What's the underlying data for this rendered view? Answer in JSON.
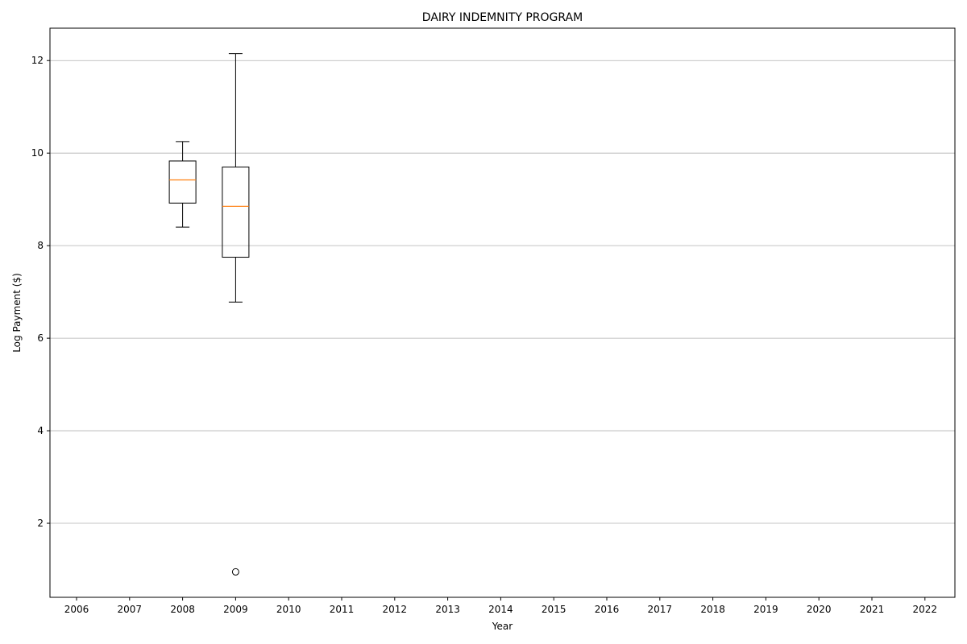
{
  "chart_data": {
    "type": "box",
    "title": "DAIRY INDEMNITY PROGRAM",
    "xlabel": "Year",
    "ylabel": "Log Payment ($)",
    "categories": [
      "2006",
      "2007",
      "2008",
      "2009",
      "2010",
      "2011",
      "2012",
      "2013",
      "2014",
      "2015",
      "2016",
      "2017",
      "2018",
      "2019",
      "2020",
      "2021",
      "2022"
    ],
    "y_ticks": [
      2,
      4,
      6,
      8,
      10,
      12
    ],
    "ylim": [
      0.4,
      12.7
    ],
    "grid": "horizontal",
    "colors": {
      "box": "#000000",
      "median": "#ff7f0e",
      "grid": "#b0b0b0"
    },
    "boxes": [
      {
        "category": "2008",
        "whisker_low": 8.4,
        "q1": 8.92,
        "median": 9.42,
        "q3": 9.83,
        "whisker_high": 10.25,
        "outliers": []
      },
      {
        "category": "2009",
        "whisker_low": 6.78,
        "q1": 7.75,
        "median": 8.85,
        "q3": 9.7,
        "whisker_high": 12.15,
        "outliers": [
          0.95
        ]
      }
    ]
  }
}
